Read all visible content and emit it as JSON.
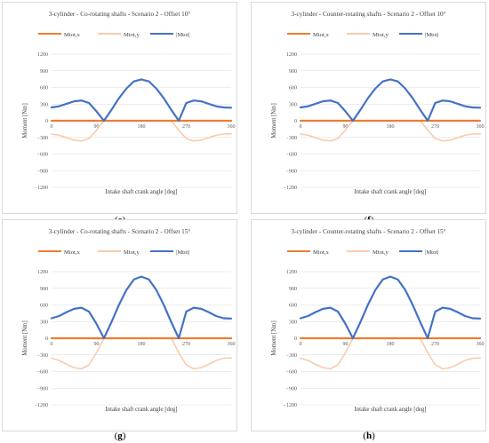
{
  "chart_data": [
    {
      "type": "line",
      "panel_label": "e",
      "title": "3-cylinder - Co-rotating shafts - Scenario 2 - Offset 10°",
      "xlabel": "Intake shaft crank angle [deg]",
      "ylabel": "Moment [Nm]",
      "xlim": [
        0,
        360
      ],
      "ylim": [
        -1200,
        1200
      ],
      "xticks": [
        "0",
        "90",
        "180",
        "270",
        "360"
      ],
      "yticks": [
        "1200",
        "900",
        "600",
        "300",
        "0",
        "−300",
        "−600",
        "−900",
        "−1200"
      ],
      "grid": true,
      "legend_position": "top",
      "series": [
        {
          "name": "Mtot,x",
          "color": "#ED7D31",
          "x": [
            0,
            360
          ],
          "y": [
            0,
            0
          ]
        },
        {
          "name": "Mtot,y",
          "color": "#F8CBAD",
          "x": [
            0,
            15,
            30,
            45,
            60,
            75,
            90,
            105,
            120,
            135,
            150,
            165,
            180,
            195,
            210,
            225,
            240,
            255,
            270,
            285,
            300,
            315,
            330,
            345,
            360
          ],
          "y": [
            -240,
            -260,
            -305,
            -350,
            -365,
            -320,
            -170,
            0,
            0,
            0,
            0,
            0,
            0,
            0,
            0,
            0,
            0,
            -170,
            -320,
            -365,
            -350,
            -305,
            -260,
            -240,
            -235
          ]
        },
        {
          "name": "|Mtot|",
          "color": "#4472C4",
          "x": [
            0,
            15,
            30,
            45,
            60,
            75,
            90,
            105,
            120,
            135,
            150,
            165,
            180,
            195,
            210,
            225,
            240,
            255,
            270,
            285,
            300,
            315,
            330,
            345,
            360
          ],
          "y": [
            240,
            260,
            305,
            350,
            365,
            320,
            170,
            0,
            195,
            405,
            580,
            710,
            745,
            710,
            580,
            405,
            195,
            0,
            320,
            365,
            350,
            305,
            260,
            240,
            235
          ]
        }
      ]
    },
    {
      "type": "line",
      "panel_label": "f",
      "title": "3-cylinder - Counter-rotating shafts - Scenario 2 - Offset 10°",
      "xlabel": "Intake shaft crank angle [deg]",
      "ylabel": "Moment [Nm]",
      "xlim": [
        0,
        360
      ],
      "ylim": [
        -1200,
        1200
      ],
      "xticks": [
        "0",
        "90",
        "180",
        "270",
        "360"
      ],
      "yticks": [
        "1200",
        "900",
        "600",
        "300",
        "0",
        "−300",
        "−600",
        "−900",
        "−1200"
      ],
      "grid": true,
      "legend_position": "top",
      "series": [
        {
          "name": "Mtot,x",
          "color": "#ED7D31",
          "x": [
            0,
            360
          ],
          "y": [
            0,
            0
          ]
        },
        {
          "name": "Mtot,y",
          "color": "#F8CBAD",
          "x": [
            0,
            15,
            30,
            45,
            60,
            75,
            90,
            105,
            120,
            135,
            150,
            165,
            180,
            195,
            210,
            225,
            240,
            255,
            270,
            285,
            300,
            315,
            330,
            345,
            360
          ],
          "y": [
            -240,
            -260,
            -305,
            -350,
            -365,
            -320,
            -170,
            0,
            0,
            0,
            0,
            0,
            0,
            0,
            0,
            0,
            0,
            -170,
            -320,
            -365,
            -350,
            -305,
            -260,
            -240,
            -235
          ]
        },
        {
          "name": "|Mtot|",
          "color": "#4472C4",
          "x": [
            0,
            15,
            30,
            45,
            60,
            75,
            90,
            105,
            120,
            135,
            150,
            165,
            180,
            195,
            210,
            225,
            240,
            255,
            270,
            285,
            300,
            315,
            330,
            345,
            360
          ],
          "y": [
            240,
            260,
            305,
            350,
            365,
            320,
            170,
            0,
            195,
            405,
            580,
            710,
            745,
            710,
            580,
            405,
            195,
            0,
            320,
            365,
            350,
            305,
            260,
            240,
            235
          ]
        }
      ]
    },
    {
      "type": "line",
      "panel_label": "g",
      "title": "3-cylinder - Co-rotating shafts - Scenario 2 - Offset 15°",
      "xlabel": "Intake shaft crank angle [deg]",
      "ylabel": "Moment [Nm]",
      "xlim": [
        0,
        360
      ],
      "ylim": [
        -1200,
        1200
      ],
      "xticks": [
        "0",
        "90",
        "180",
        "270",
        "360"
      ],
      "yticks": [
        "1200",
        "900",
        "600",
        "300",
        "0",
        "−300",
        "−600",
        "−900",
        "−1200"
      ],
      "grid": true,
      "legend_position": "top",
      "series": [
        {
          "name": "Mtot,x",
          "color": "#ED7D31",
          "x": [
            0,
            360
          ],
          "y": [
            0,
            0
          ]
        },
        {
          "name": "Mtot,y",
          "color": "#F8CBAD",
          "x": [
            0,
            15,
            30,
            45,
            60,
            75,
            90,
            105,
            120,
            135,
            150,
            165,
            180,
            195,
            210,
            225,
            240,
            255,
            270,
            285,
            300,
            315,
            330,
            345,
            360
          ],
          "y": [
            -360,
            -400,
            -470,
            -530,
            -550,
            -480,
            -260,
            0,
            0,
            0,
            0,
            0,
            0,
            0,
            0,
            0,
            0,
            -260,
            -480,
            -550,
            -530,
            -470,
            -400,
            -360,
            -355
          ]
        },
        {
          "name": "|Mtot|",
          "color": "#4472C4",
          "x": [
            0,
            15,
            30,
            45,
            60,
            75,
            90,
            105,
            120,
            135,
            150,
            165,
            180,
            195,
            210,
            225,
            240,
            255,
            270,
            285,
            300,
            315,
            330,
            345,
            360
          ],
          "y": [
            360,
            400,
            470,
            530,
            550,
            480,
            260,
            0,
            290,
            600,
            870,
            1060,
            1110,
            1060,
            870,
            600,
            290,
            0,
            480,
            550,
            530,
            470,
            400,
            360,
            355
          ]
        }
      ]
    },
    {
      "type": "line",
      "panel_label": "h",
      "title": "3-cylinder - Counter-rotating shafts - Scenario 2 - Offset 15°",
      "xlabel": "Intake shaft crank angle [deg]",
      "ylabel": "Moment [Nm]",
      "xlim": [
        0,
        360
      ],
      "ylim": [
        -1200,
        1200
      ],
      "xticks": [
        "0",
        "90",
        "180",
        "270",
        "360"
      ],
      "yticks": [
        "1200",
        "900",
        "600",
        "300",
        "0",
        "−300",
        "−600",
        "−900",
        "−1200"
      ],
      "grid": true,
      "legend_position": "top",
      "series": [
        {
          "name": "Mtot,x",
          "color": "#ED7D31",
          "x": [
            0,
            360
          ],
          "y": [
            0,
            0
          ]
        },
        {
          "name": "Mtot,y",
          "color": "#F8CBAD",
          "x": [
            0,
            15,
            30,
            45,
            60,
            75,
            90,
            105,
            120,
            135,
            150,
            165,
            180,
            195,
            210,
            225,
            240,
            255,
            270,
            285,
            300,
            315,
            330,
            345,
            360
          ],
          "y": [
            -360,
            -400,
            -470,
            -530,
            -550,
            -480,
            -260,
            0,
            0,
            0,
            0,
            0,
            0,
            0,
            0,
            0,
            0,
            -260,
            -480,
            -550,
            -530,
            -470,
            -400,
            -360,
            -355
          ]
        },
        {
          "name": "|Mtot|",
          "color": "#4472C4",
          "x": [
            0,
            15,
            30,
            45,
            60,
            75,
            90,
            105,
            120,
            135,
            150,
            165,
            180,
            195,
            210,
            225,
            240,
            255,
            270,
            285,
            300,
            315,
            330,
            345,
            360
          ],
          "y": [
            360,
            400,
            470,
            530,
            550,
            480,
            260,
            0,
            290,
            600,
            870,
            1060,
            1110,
            1060,
            870,
            600,
            290,
            0,
            480,
            550,
            530,
            470,
            400,
            360,
            355
          ]
        }
      ]
    }
  ],
  "captions": [
    {
      "open": "(",
      "letter": "e",
      "close": ")"
    },
    {
      "open": "(",
      "letter": "f",
      "close": ")"
    },
    {
      "open": "(",
      "letter": "g",
      "close": ")"
    },
    {
      "open": "(",
      "letter": "h",
      "close": ")"
    }
  ]
}
